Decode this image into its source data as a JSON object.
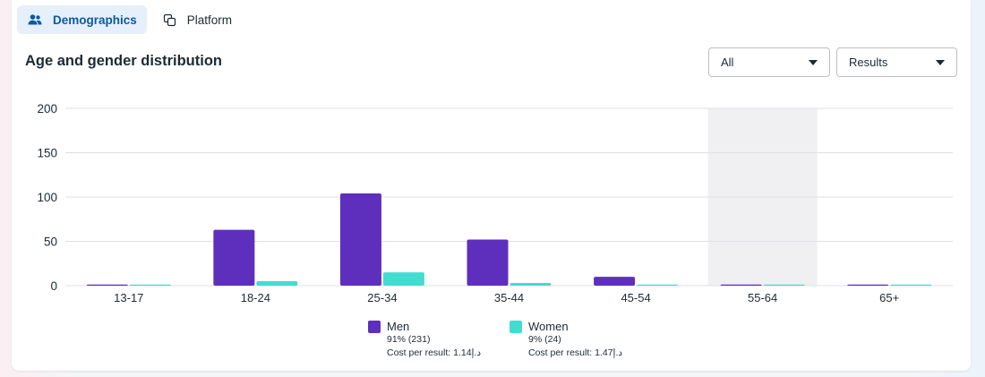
{
  "tabs": [
    {
      "label": "Demographics",
      "icon": "people-icon",
      "active": true
    },
    {
      "label": "Platform",
      "icon": "platform-icon",
      "active": false
    }
  ],
  "section_title": "Age and gender distribution",
  "filters": {
    "audience": {
      "selected": "All"
    },
    "metric": {
      "selected": "Results"
    }
  },
  "colors": {
    "men": "#5e2fbd",
    "women": "#42ddd0",
    "highlight": "#f0f0f2",
    "grid": "#dfe1e4",
    "accent": "#0a5aa3"
  },
  "chart_data": {
    "type": "bar",
    "title": "Age and gender distribution",
    "xlabel": "",
    "ylabel": "",
    "ylim": [
      0,
      200
    ],
    "yticks": [
      "0",
      "50",
      "100",
      "150",
      "200"
    ],
    "categories": [
      "13-17",
      "18-24",
      "25-34",
      "35-44",
      "45-54",
      "55-64",
      "65+"
    ],
    "highlighted_category": "55-64",
    "series": [
      {
        "name": "Men",
        "values": [
          0,
          63,
          104,
          52,
          10,
          1,
          1
        ]
      },
      {
        "name": "Women",
        "values": [
          0,
          5,
          15,
          3,
          1,
          0,
          0
        ]
      }
    ],
    "grid": true,
    "legend_position": "bottom"
  },
  "legend": {
    "men": {
      "label": "Men",
      "share": "91% (231)",
      "cost": "Cost per result: 1.14د.إ"
    },
    "women": {
      "label": "Women",
      "share": "9% (24)",
      "cost": "Cost per result: 1.47د.إ"
    }
  }
}
